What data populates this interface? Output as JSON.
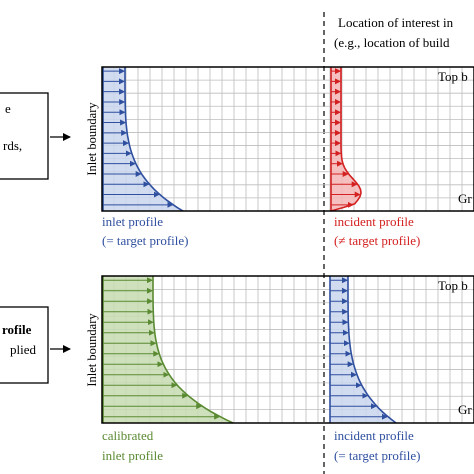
{
  "header": {
    "line1": "Location of interest in",
    "line2": "(e.g., location of build"
  },
  "top_panel": {
    "left_box_lines": [
      "e",
      "",
      "rds,"
    ],
    "inlet_boundary_label": "Inlet boundary",
    "top_boundary_label": "Top b",
    "ground_label": "Gr",
    "inlet_caption_line1": "inlet profile",
    "inlet_caption_line2": "(= target profile)",
    "incident_caption_line1": "incident profile",
    "incident_caption_line2": "(≠ target profile)"
  },
  "bottom_panel": {
    "left_box_lines": [
      "rofile",
      "plied"
    ],
    "inlet_boundary_label": "Inlet boundary",
    "top_boundary_label": "Top b",
    "ground_label": "Gr",
    "inlet_caption_line1": "calibrated",
    "inlet_caption_line2": "inlet profile",
    "incident_caption_line1": "incident profile",
    "incident_caption_line2": "(= target profile)"
  },
  "colors": {
    "blue": "#2f4f9f",
    "blue_fill": "#c9d6ee",
    "red": "#d42020",
    "red_fill": "#f5b5b5",
    "green": "#5a8a32",
    "green_fill": "#c6dcb0",
    "grid": "#bdbdbd",
    "frame": "#000000"
  }
}
